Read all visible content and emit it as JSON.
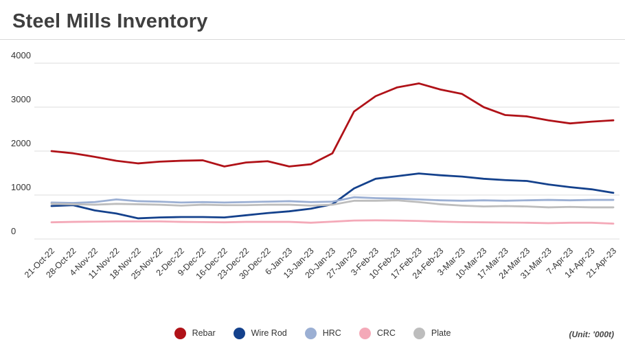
{
  "chart_data": {
    "type": "line",
    "title": "Steel Mills Inventory",
    "unit_note": "(Unit: '000t)",
    "xlabel": "",
    "ylabel": "",
    "ylim": [
      0,
      4000
    ],
    "yticks": [
      0,
      1000,
      2000,
      3000,
      4000
    ],
    "grid": true,
    "legend_position": "bottom",
    "colors": {
      "grid": "#dcdcdc",
      "axis_text": "#333333",
      "title_text": "#3f3f3f"
    },
    "categories": [
      "21-Oct-22",
      "28-Oct-22",
      "4-Nov-22",
      "11-Nov-22",
      "18-Nov-22",
      "25-Nov-22",
      "2-Dec-22",
      "9-Dec-22",
      "16-Dec-22",
      "23-Dec-22",
      "30-Dec-22",
      "6-Jan-23",
      "13-Jan-23",
      "20-Jan-23",
      "27-Jan-23",
      "3-Feb-23",
      "10-Feb-23",
      "17-Feb-23",
      "24-Feb-23",
      "3-Mar-23",
      "10-Mar-23",
      "17-Mar-23",
      "24-Mar-23",
      "31-Mar-23",
      "7-Apr-23",
      "14-Apr-23",
      "21-Apr-23"
    ],
    "series": [
      {
        "name": "Rebar",
        "color": "#b01218",
        "values": [
          2000,
          1950,
          1870,
          1780,
          1720,
          1760,
          1780,
          1790,
          1650,
          1740,
          1770,
          1650,
          1700,
          1950,
          2900,
          3250,
          3450,
          3540,
          3400,
          3300,
          3000,
          2820,
          2790,
          2700,
          2630,
          2670,
          2700
        ]
      },
      {
        "name": "Wire Rod",
        "color": "#14418c",
        "values": [
          750,
          770,
          650,
          580,
          470,
          490,
          500,
          500,
          490,
          540,
          590,
          630,
          690,
          790,
          1150,
          1370,
          1430,
          1490,
          1450,
          1420,
          1370,
          1340,
          1320,
          1240,
          1180,
          1130,
          1050
        ]
      },
      {
        "name": "HRC",
        "color": "#9bafd3",
        "values": [
          830,
          820,
          840,
          900,
          860,
          850,
          830,
          840,
          830,
          840,
          850,
          860,
          840,
          850,
          950,
          930,
          920,
          900,
          880,
          870,
          880,
          870,
          880,
          890,
          880,
          890,
          890
        ]
      },
      {
        "name": "CRC",
        "color": "#f4a9b8",
        "values": [
          380,
          390,
          395,
          400,
          400,
          400,
          390,
          385,
          380,
          390,
          390,
          390,
          370,
          395,
          420,
          425,
          420,
          410,
          395,
          385,
          380,
          375,
          370,
          360,
          370,
          370,
          350
        ]
      },
      {
        "name": "Plate",
        "color": "#bdbdbd",
        "values": [
          800,
          790,
          780,
          800,
          790,
          780,
          760,
          780,
          770,
          770,
          780,
          780,
          760,
          780,
          870,
          870,
          880,
          840,
          790,
          760,
          740,
          750,
          740,
          720,
          730,
          720,
          720
        ]
      }
    ]
  }
}
